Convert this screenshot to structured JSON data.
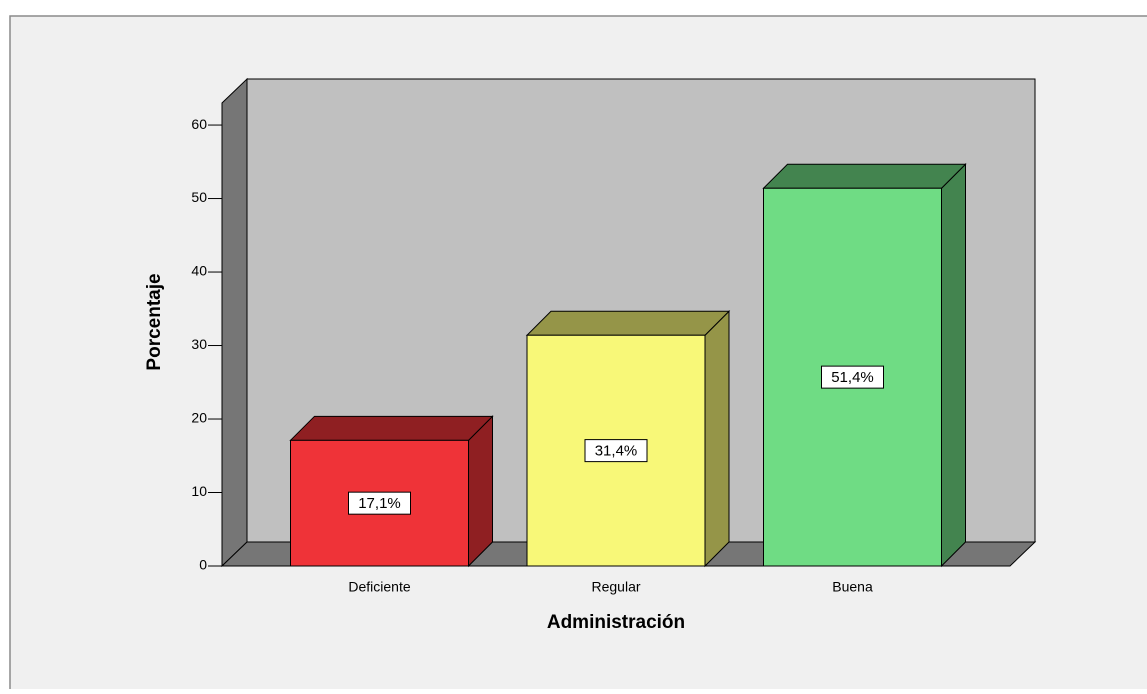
{
  "chart_data": {
    "type": "bar3d",
    "x_label": "Administración",
    "y_label": "Porcentaje",
    "categories": [
      "Deficiente",
      "Regular",
      "Buena"
    ],
    "values": [
      17.1,
      31.4,
      51.4
    ],
    "value_labels": [
      "17,1%",
      "31,4%",
      "51,4%"
    ],
    "colors": [
      "#ef3338",
      "#f8f878",
      "#6fdc84"
    ],
    "ylim": [
      0,
      63
    ],
    "yticks": [
      0,
      10,
      20,
      30,
      40,
      50,
      60
    ]
  }
}
